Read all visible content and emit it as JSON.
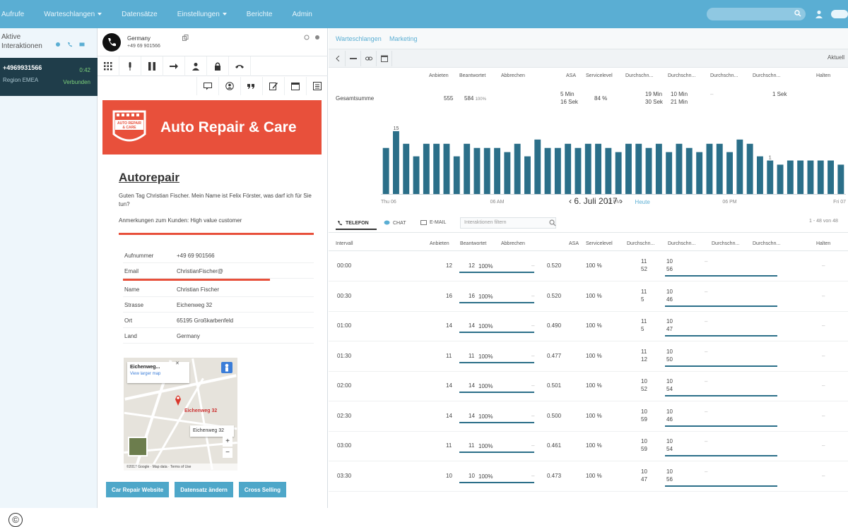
{
  "nav": {
    "items": [
      {
        "label": "Aufrufe",
        "caret": false
      },
      {
        "label": "Warteschlangen",
        "caret": true
      },
      {
        "label": "Datensätze",
        "caret": false
      },
      {
        "label": "Einstellungen",
        "caret": true
      },
      {
        "label": "Berichte",
        "caret": false
      },
      {
        "label": "Admin",
        "caret": false
      }
    ]
  },
  "sidebar": {
    "header_line1": "Aktive",
    "header_line2": "Interaktionen",
    "call": {
      "number": "+4969931566",
      "region": "Region EMEA",
      "time": "0:42",
      "status": "Verbunden"
    }
  },
  "call_header": {
    "country": "Germany",
    "number": "+49 69 901566"
  },
  "banner": {
    "title": "Auto Repair & Care"
  },
  "script": {
    "heading": "Autorepair",
    "greeting": "Guten Tag Christian Fischer. Mein Name ist Felix Förster, was darf ich für Sie tun?",
    "note": "Anmerkungen zum Kunden: High value customer",
    "fields": [
      {
        "label": "Aufnummer",
        "value": "+49 69 901566"
      },
      {
        "label": "Email",
        "value": "ChristianFischer@"
      },
      {
        "label": "Name",
        "value": "Christian Fischer"
      },
      {
        "label": "Strasse",
        "value": "Eichenweg 32"
      },
      {
        "label": "Ort",
        "value": "65195 Großkarbenfeld"
      },
      {
        "label": "Land",
        "value": "Germany"
      }
    ]
  },
  "map": {
    "popup_street": "Eichenweg...",
    "popup_link": "View larger map",
    "pin_label": "Eichenweg 32",
    "label2": "Eichenweg 32",
    "footer": "©2017 Google · Map data · Terms of Use"
  },
  "actions": [
    "Car Repair Website",
    "Datensatz ändern",
    "Cross Selling"
  ],
  "right": {
    "tab1": "Warteschlangen",
    "tab2": "Marketing",
    "actual": "Aktuell",
    "summary_headers": [
      "Anbieten",
      "Beantwortet",
      "Abbrechen",
      "ASA",
      "Servicelevel",
      "Durchschn...",
      "Durchschn...",
      "Durchschn...",
      "Durchschn...",
      "Halten"
    ],
    "total_label": "Gesamtsumme",
    "total_values": {
      "anbieten": "555",
      "beantwortet": "584",
      "asa_top": "5 Min",
      "asa_bottom": "16 Sek",
      "sl": "84 %",
      "d1_top": "19 Min",
      "d1_bottom": "30 Sek",
      "d2_top": "10 Min",
      "d2_bottom": "21 Min",
      "d3": "–",
      "d4": "1 Sek"
    },
    "date": "6. Juli 2017",
    "today": "Heute",
    "subtabs": {
      "telefon": "TELEFON",
      "chat": "CHAT",
      "email": "E-MAIL"
    },
    "filter_placeholder": "Interaktionen filtern",
    "pager": "1 - 48 von 48",
    "table_headers": [
      "Intervall",
      "Anbieten",
      "Beantwortet",
      "Abbrechen",
      "ASA",
      "Servicelevel",
      "Durchschn...",
      "Durchschn...",
      "Durchschn...",
      "Durchschn...",
      "Halten"
    ]
  },
  "chart_data": {
    "type": "bar",
    "x_ticks": [
      "Thu 06",
      "06 AM",
      "12 PM",
      "06 PM",
      "Fri 07"
    ],
    "label_first": "15",
    "label_marked": "1",
    "values": [
      11,
      15,
      12,
      9,
      12,
      12,
      12,
      9,
      12,
      11,
      11,
      11,
      10,
      12,
      9,
      13,
      11,
      11,
      12,
      11,
      12,
      12,
      11,
      10,
      12,
      12,
      11,
      12,
      10,
      12,
      11,
      10,
      12,
      12,
      10,
      13,
      12,
      9,
      8,
      7,
      8,
      8,
      8,
      8,
      8,
      7
    ],
    "ylim": [
      0,
      16
    ],
    "color": "#2b6f89"
  },
  "rows": [
    {
      "interval": "00:00",
      "anbieten": "12",
      "beantwortet": "12",
      "pct": "100%",
      "asa": "0.520",
      "sl": "100 %",
      "d1a": "11",
      "d1b": "52",
      "d2a": "10",
      "d2b": "56"
    },
    {
      "interval": "00:30",
      "anbieten": "16",
      "beantwortet": "16",
      "pct": "100%",
      "asa": "0.520",
      "sl": "100 %",
      "d1a": "11",
      "d1b": "5",
      "d2a": "10",
      "d2b": "46"
    },
    {
      "interval": "01:00",
      "anbieten": "14",
      "beantwortet": "14",
      "pct": "100%",
      "asa": "0.490",
      "sl": "100 %",
      "d1a": "11",
      "d1b": "5",
      "d2a": "10",
      "d2b": "47"
    },
    {
      "interval": "01:30",
      "anbieten": "11",
      "beantwortet": "11",
      "pct": "100%",
      "asa": "0.477",
      "sl": "100 %",
      "d1a": "11",
      "d1b": "12",
      "d2a": "10",
      "d2b": "50"
    },
    {
      "interval": "02:00",
      "anbieten": "14",
      "beantwortet": "14",
      "pct": "100%",
      "asa": "0.501",
      "sl": "100 %",
      "d1a": "10",
      "d1b": "52",
      "d2a": "10",
      "d2b": "54"
    },
    {
      "interval": "02:30",
      "anbieten": "14",
      "beantwortet": "14",
      "pct": "100%",
      "asa": "0.500",
      "sl": "100 %",
      "d1a": "10",
      "d1b": "59",
      "d2a": "10",
      "d2b": "46"
    },
    {
      "interval": "03:00",
      "anbieten": "11",
      "beantwortet": "11",
      "pct": "100%",
      "asa": "0.461",
      "sl": "100 %",
      "d1a": "10",
      "d1b": "59",
      "d2a": "10",
      "d2b": "54"
    },
    {
      "interval": "03:30",
      "anbieten": "10",
      "beantwortet": "10",
      "pct": "100%",
      "asa": "0.473",
      "sl": "100 %",
      "d1a": "10",
      "d1b": "47",
      "d2a": "10",
      "d2b": "56"
    }
  ]
}
